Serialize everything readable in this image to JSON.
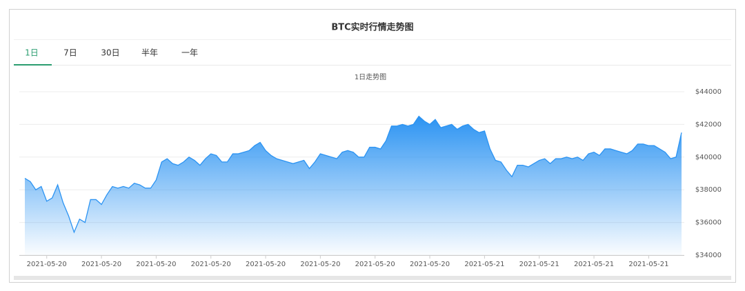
{
  "header": {
    "title": "BTC实时行情走势图"
  },
  "tabs": [
    "1日",
    "7日",
    "30日",
    "半年",
    "一年"
  ],
  "active_tab": 0,
  "chart_data": {
    "type": "area",
    "title": "1日走势图",
    "color": "#2b93f2",
    "grid": true,
    "ylim": [
      34000,
      44000
    ],
    "yticks": [
      {
        "value": 34000,
        "label": "$34000"
      },
      {
        "value": 36000,
        "label": "$36000"
      },
      {
        "value": 38000,
        "label": "$38000"
      },
      {
        "value": 40000,
        "label": "$40000"
      },
      {
        "value": 42000,
        "label": "$42000"
      },
      {
        "value": 44000,
        "label": "$44000"
      }
    ],
    "categories": [
      null,
      null,
      null,
      null,
      "2021-05-20",
      null,
      null,
      null,
      null,
      null,
      null,
      null,
      null,
      null,
      "2021-05-20",
      null,
      null,
      null,
      null,
      null,
      null,
      null,
      null,
      null,
      "2021-05-20",
      null,
      null,
      null,
      null,
      null,
      null,
      null,
      null,
      null,
      "2021-05-20",
      null,
      null,
      null,
      null,
      null,
      null,
      null,
      null,
      null,
      "2021-05-20",
      null,
      null,
      null,
      null,
      null,
      null,
      null,
      null,
      null,
      "2021-05-20",
      null,
      null,
      null,
      null,
      null,
      null,
      null,
      null,
      null,
      "2021-05-20",
      null,
      null,
      null,
      null,
      null,
      null,
      null,
      null,
      null,
      "2021-05-20",
      null,
      null,
      null,
      null,
      null,
      null,
      null,
      null,
      null,
      "2021-05-21",
      null,
      null,
      null,
      null,
      null,
      null,
      null,
      null,
      null,
      "2021-05-21",
      null,
      null,
      null,
      null,
      null,
      null,
      null,
      null,
      null,
      "2021-05-21",
      null,
      null,
      null,
      null,
      null,
      null,
      null,
      null,
      null,
      "2021-05-21",
      null,
      null,
      null,
      null,
      null,
      null
    ],
    "values": [
      38700,
      38500,
      38000,
      38200,
      37300,
      37500,
      38300,
      37200,
      36400,
      35400,
      36200,
      36000,
      37400,
      37400,
      37100,
      37700,
      38200,
      38100,
      38200,
      38100,
      38400,
      38300,
      38100,
      38100,
      38600,
      39700,
      39900,
      39600,
      39500,
      39700,
      40000,
      39800,
      39500,
      39900,
      40200,
      40100,
      39700,
      39700,
      40200,
      40200,
      40300,
      40400,
      40700,
      40900,
      40400,
      40100,
      39900,
      39800,
      39700,
      39600,
      39700,
      39800,
      39300,
      39700,
      40200,
      40100,
      40000,
      39900,
      40300,
      40400,
      40300,
      40000,
      40000,
      40600,
      40600,
      40500,
      41000,
      41900,
      41900,
      42000,
      41900,
      42000,
      42500,
      42200,
      42000,
      42300,
      41800,
      41900,
      42000,
      41700,
      41900,
      42000,
      41700,
      41500,
      41600,
      40500,
      39800,
      39700,
      39200,
      38800,
      39500,
      39500,
      39400,
      39600,
      39800,
      39900,
      39600,
      39900,
      39900,
      40000,
      39900,
      40000,
      39800,
      40200,
      40300,
      40100,
      40500,
      40500,
      40400,
      40300,
      40200,
      40400,
      40800,
      40800,
      40700,
      40700,
      40500,
      40300,
      39900,
      40000,
      41500
    ]
  }
}
